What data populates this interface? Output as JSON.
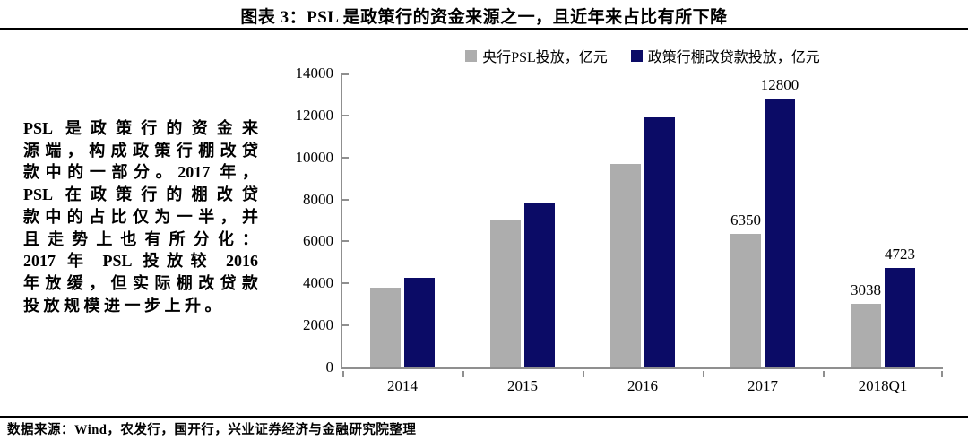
{
  "title": "图表 3：PSL 是政策行的资金来源之一，且近年来占比有所下降",
  "commentary_lines": [
    "PSL 是政策行的资金来",
    "源端，构成政策行棚改贷",
    "款中的一部分。2017 年，",
    "PSL 在政策行的棚改贷",
    "款中的占比仅为一半，并",
    "且走势上也有所分化：",
    "2017 年 PSL 投放较 2016",
    "年放缓，但实际棚改贷款",
    "投放规模进一步上升。"
  ],
  "source": "数据来源：Wind，农发行，国开行，兴业证券经济与金融研究院整理",
  "colors": {
    "psl_gray": "#ADADAD",
    "shantytown_navy": "#0B0B66",
    "axis_gray": "#8F8F8F",
    "rule_black": "#000000"
  },
  "chart_data": {
    "type": "bar",
    "title": "图表 3：PSL 是政策行的资金来源之一，且近年来占比有所下降",
    "categories": [
      "2014",
      "2015",
      "2016",
      "2017",
      "2018Q1"
    ],
    "series": [
      {
        "name": "央行PSL投放，亿元",
        "color_key": "psl_gray",
        "values": [
          3800,
          7000,
          9700,
          6350,
          3038
        ],
        "data_labels": [
          null,
          null,
          null,
          "6350",
          "3038"
        ]
      },
      {
        "name": "政策行棚改贷款投放，亿元",
        "color_key": "shantytown_navy",
        "values": [
          4250,
          7800,
          11900,
          12800,
          4723
        ],
        "data_labels": [
          null,
          null,
          null,
          "12800",
          "4723"
        ]
      }
    ],
    "ylim": [
      0,
      14000
    ],
    "yticks": [
      0,
      2000,
      4000,
      6000,
      8000,
      10000,
      12000,
      14000
    ],
    "legend_position": "top",
    "grid": false
  }
}
